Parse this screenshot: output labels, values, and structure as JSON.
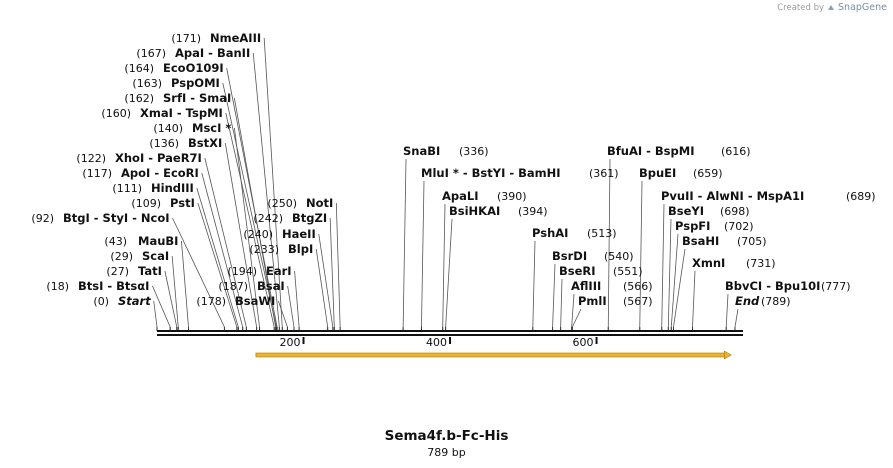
{
  "credit": {
    "prefix": "Created by",
    "brand": "SnapGene"
  },
  "title": "Sema4f.b-Fc-His",
  "length_label": "789 bp",
  "sequence_length": 789,
  "ruler_ticks": [
    "200",
    "400",
    "600"
  ],
  "feature": {
    "name": "orf-arrow",
    "start": 135,
    "end": 784,
    "color": "#f0b429"
  },
  "sites": [
    {
      "id": "start",
      "pos": "(0)",
      "label": "Start",
      "italic": true,
      "bp": 0
    },
    {
      "id": "btsi",
      "pos": "(18)",
      "label": "BtsI  - BtsαI",
      "bp": 18
    },
    {
      "id": "tati",
      "pos": "(27)",
      "label": "TatI",
      "bp": 27
    },
    {
      "id": "scai",
      "pos": "(29)",
      "label": "ScaI",
      "bp": 29
    },
    {
      "id": "maubi",
      "pos": "(43)",
      "label": "MauBI",
      "bp": 43
    },
    {
      "id": "btgi",
      "pos": "(92)",
      "label": "BtgI  - StyI  - NcoI",
      "bp": 92
    },
    {
      "id": "psti",
      "pos": "(109)",
      "label": "PstI",
      "bp": 109
    },
    {
      "id": "hindiii",
      "pos": "(111)",
      "label": "HindIII",
      "bp": 111
    },
    {
      "id": "apoi",
      "pos": "(117)",
      "label": "ApoI  - EcoRI",
      "bp": 117
    },
    {
      "id": "xhoi",
      "pos": "(122)",
      "label": "XhoI  - PaeR7I",
      "bp": 122
    },
    {
      "id": "bstxi",
      "pos": "(136)",
      "label": "BstXI",
      "bp": 136
    },
    {
      "id": "msci",
      "pos": "(140)",
      "label": "MscI *",
      "bp": 140
    },
    {
      "id": "xmai",
      "pos": "(160)",
      "label": "XmaI  - TspMI",
      "bp": 160
    },
    {
      "id": "srfi",
      "pos": "(162)",
      "label": "SrfI  - SmaI",
      "bp": 162
    },
    {
      "id": "pspomi",
      "pos": "(163)",
      "label": "PspOMI",
      "bp": 163
    },
    {
      "id": "ecoo109i",
      "pos": "(164)",
      "label": "EcoO109I",
      "bp": 164
    },
    {
      "id": "apai",
      "pos": "(167)",
      "label": "ApaI  - BanII",
      "bp": 167
    },
    {
      "id": "nmeaiii",
      "pos": "(171)",
      "label": "NmeAIII",
      "bp": 171
    },
    {
      "id": "bsawi",
      "pos": "(178)",
      "label": "BsaWI",
      "bp": 178
    },
    {
      "id": "bsai",
      "pos": "(187)",
      "label": "BsaI",
      "bp": 187
    },
    {
      "id": "eari",
      "pos": "(194)",
      "label": "EarI",
      "bp": 194
    },
    {
      "id": "blpi",
      "pos": "(233)",
      "label": "BlpI",
      "bp": 233
    },
    {
      "id": "haeii",
      "pos": "(240)",
      "label": "HaeII",
      "bp": 240
    },
    {
      "id": "btgzi",
      "pos": "(242)",
      "label": "BtgZI",
      "bp": 242
    },
    {
      "id": "noti",
      "pos": "(250)",
      "label": "NotI",
      "bp": 250
    },
    {
      "id": "snabi",
      "pos": "(336)",
      "label": "SnaBI",
      "bp": 336
    },
    {
      "id": "mlui",
      "pos": "(361)",
      "label": "MluI *  - BstYI  - BamHI",
      "bp": 361
    },
    {
      "id": "apali",
      "pos": "(390)",
      "label": "ApaLI",
      "bp": 390
    },
    {
      "id": "bsihkai",
      "pos": "(394)",
      "label": "BsiHKAI",
      "bp": 394
    },
    {
      "id": "pshai",
      "pos": "(513)",
      "label": "PshAI",
      "bp": 513
    },
    {
      "id": "bsrdi",
      "pos": "(540)",
      "label": "BsrDI",
      "bp": 540
    },
    {
      "id": "bseri",
      "pos": "(551)",
      "label": "BseRI",
      "bp": 551
    },
    {
      "id": "afliii",
      "pos": "(566)",
      "label": "AflIII",
      "bp": 566
    },
    {
      "id": "pmli",
      "pos": "(567)",
      "label": "PmlI",
      "bp": 567
    },
    {
      "id": "bfuai",
      "pos": "(616)",
      "label": "BfuAI  - BspMI",
      "bp": 616
    },
    {
      "id": "bpuei",
      "pos": "(659)",
      "label": "BpuEI",
      "bp": 659
    },
    {
      "id": "pvuii",
      "pos": "(689)",
      "label": "PvuII  - AlwNI  - MspA1I",
      "bp": 689
    },
    {
      "id": "bseyi",
      "pos": "(698)",
      "label": "BseYI",
      "bp": 698
    },
    {
      "id": "pspfi",
      "pos": "(702)",
      "label": "PspFI",
      "bp": 702
    },
    {
      "id": "bsahi",
      "pos": "(705)",
      "label": "BsaHI",
      "bp": 705
    },
    {
      "id": "xmni",
      "pos": "(731)",
      "label": "XmnI",
      "bp": 731
    },
    {
      "id": "bbvci",
      "pos": "(777)",
      "label": "BbvCI  - Bpu10I",
      "bp": 777
    },
    {
      "id": "end",
      "pos": "(789)",
      "label": "End",
      "italic": true,
      "bp": 789
    }
  ]
}
